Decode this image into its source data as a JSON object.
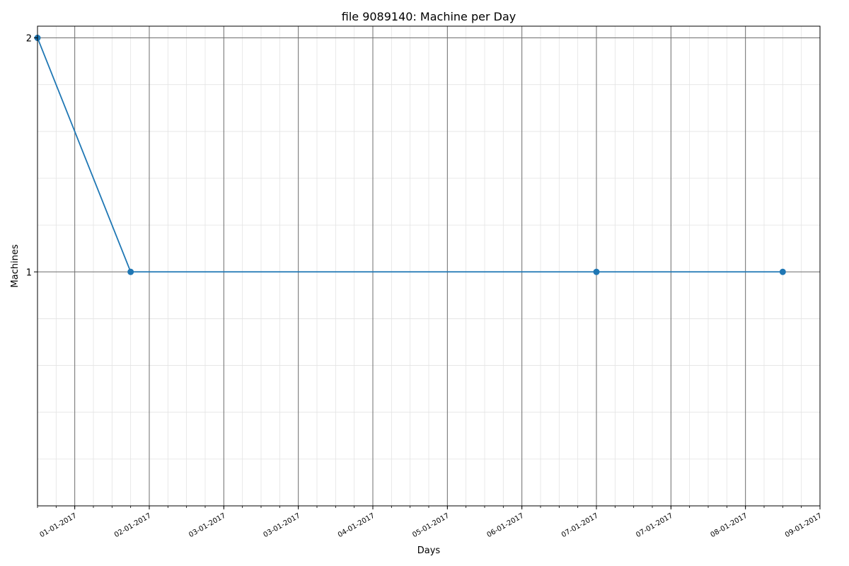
{
  "chart_data": {
    "type": "line",
    "title": "file 9089140: Machine per Day",
    "xlabel": "Days",
    "ylabel": "Machines",
    "x_tick_labels": [
      "01-01-2017",
      "02-01-2017",
      "03-01-2017",
      "03-01-2017",
      "04-01-2017",
      "05-01-2017",
      "06-01-2017",
      "07-01-2017",
      "07-01-2017",
      "08-01-2017",
      "09-01-2017"
    ],
    "y_tick_labels": [
      "1",
      "2"
    ],
    "y_ticks": [
      1,
      2
    ],
    "y_minor_step": 0.2,
    "ylim": [
      0,
      2.05
    ],
    "x_tick_positions": [
      1.5,
      3.5,
      5.5,
      7.5,
      9.5,
      11.5,
      13.5,
      15.5,
      17.5,
      19.5,
      21.5
    ],
    "x_minor_step": 0.5,
    "xlim": [
      0.5,
      21.5
    ],
    "grid": true,
    "series": [
      {
        "color": "#1f77b4",
        "points": [
          {
            "x": 0.5,
            "y": 2
          },
          {
            "x": 3.0,
            "y": 1
          },
          {
            "x": 15.5,
            "y": 1
          },
          {
            "x": 20.5,
            "y": 1
          }
        ]
      }
    ]
  }
}
